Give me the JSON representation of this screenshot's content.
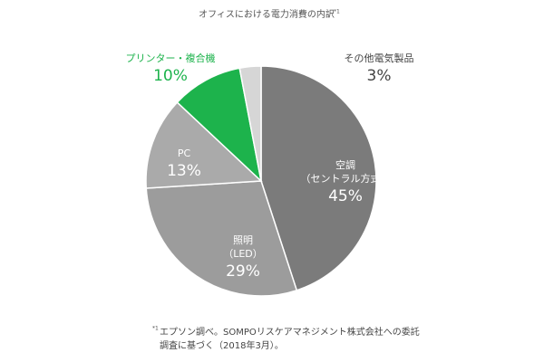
{
  "chart_data": {
    "type": "pie",
    "title": "オフィスにおける電力消費の内訳",
    "title_note": "*1",
    "categories": [
      "空調",
      "照明",
      "PC",
      "プリンター・複合機",
      "その他電気製品"
    ],
    "category_notes": [
      "（セントラル方式）",
      "（LED）",
      null,
      null,
      null
    ],
    "values": [
      45,
      29,
      13,
      10,
      3
    ],
    "value_labels": [
      "45%",
      "29%",
      "13%",
      "10%",
      "3%"
    ],
    "colors": [
      "#7b7b7b",
      "#9c9c9c",
      "#aaaaaa",
      "#1db34c",
      "#d6d6d6"
    ],
    "label_colors": [
      "#ffffff",
      "#ffffff",
      "#ffffff",
      "#1db34c",
      "#444444"
    ],
    "footnote_mark": "*1",
    "footnote": [
      "エプソン調べ。SOMPOリスケアマネジメント株式会社への委託",
      "調査に基づく（2018年3月）。"
    ]
  }
}
